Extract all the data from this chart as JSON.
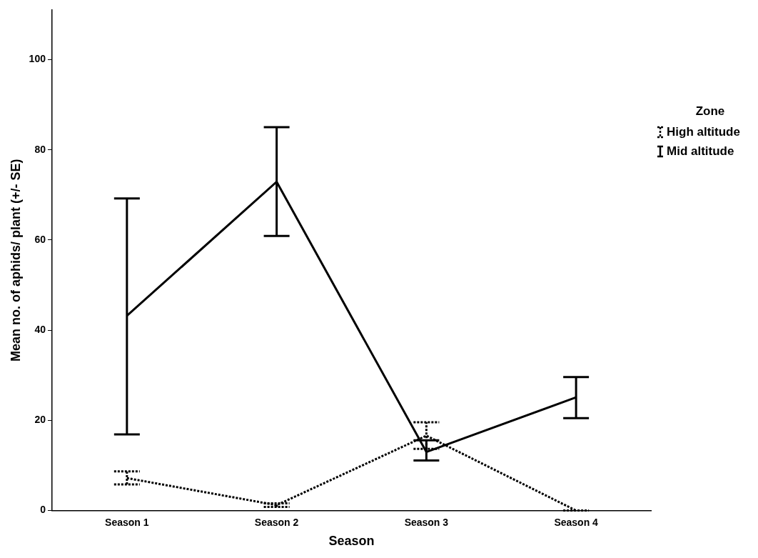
{
  "chart_data": {
    "type": "line",
    "xlabel": "Season",
    "ylabel": "Mean no. of aphids/ plant (+/- SE)",
    "legend_title": "Zone",
    "categories": [
      "Season 1",
      "Season 2",
      "Season 3",
      "Season 4"
    ],
    "ylim": [
      0,
      111
    ],
    "yticks": [
      0,
      20,
      40,
      60,
      80,
      100
    ],
    "grid": false,
    "legend": "right",
    "marker": "none",
    "series": [
      {
        "name": "High altitude",
        "color": "#000000",
        "line_style": "dotted",
        "values": [
          7.2,
          1.2,
          16.6,
          0
        ],
        "errors": [
          [
            5.8,
            8.7
          ],
          [
            0.8,
            1.6
          ],
          [
            13.7,
            19.6
          ],
          [
            0,
            0
          ]
        ]
      },
      {
        "name": "Mid altitude",
        "color": "#000000",
        "line_style": "solid",
        "values": [
          43.2,
          72.9,
          13.0,
          25.1
        ],
        "errors": [
          [
            16.9,
            69.2
          ],
          [
            60.9,
            85.0
          ],
          [
            11.1,
            15.6
          ],
          [
            20.5,
            29.6
          ]
        ]
      }
    ]
  }
}
